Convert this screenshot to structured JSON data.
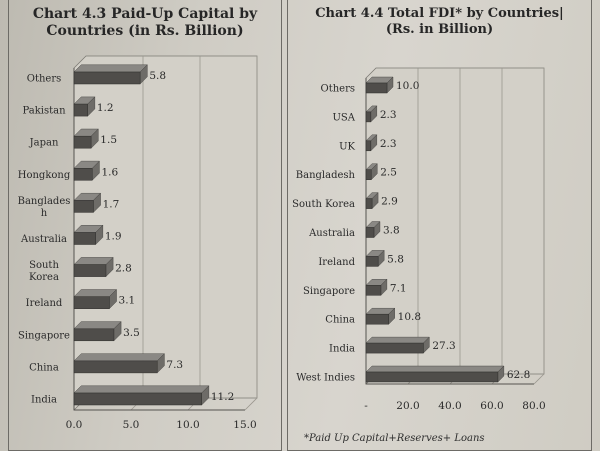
{
  "charts": [
    {
      "id": "chart-4-3",
      "title_line1": "Chart 4.3  Paid-Up Capital by",
      "title_line2": "Countries (in Rs. Billion)"
    },
    {
      "id": "chart-4-4",
      "title_line1": "Chart 4.4  Total FDI* by Countries|",
      "title_line2": "(Rs. in Billion)"
    }
  ],
  "footnote": "*Paid Up Capital+Reserves+ Loans",
  "colors": {
    "bar": "#4f4d4a",
    "bar_top": "#8a8884",
    "plot_bg": "#d3d0c8",
    "grid": "#9a978f"
  },
  "chart_data": [
    {
      "type": "bar",
      "orientation": "horizontal",
      "title": "Chart 4.3 Paid-Up Capital by Countries (in Rs. Billion)",
      "categories": [
        "Others",
        "Pakistan",
        "Japan",
        "Hongkong",
        "Banglades h",
        "Australia",
        "South Korea",
        "Ireland",
        "Singapore",
        "China",
        "India"
      ],
      "category_lines": [
        [
          "Others"
        ],
        [
          "Pakistan"
        ],
        [
          "Japan"
        ],
        [
          "Hongkong"
        ],
        [
          "Banglades",
          "h"
        ],
        [
          "Australia"
        ],
        [
          "South",
          "Korea"
        ],
        [
          "Ireland"
        ],
        [
          "Singapore"
        ],
        [
          "China"
        ],
        [
          "India"
        ]
      ],
      "values": [
        5.8,
        1.2,
        1.5,
        1.6,
        1.7,
        1.9,
        2.8,
        3.1,
        3.5,
        7.3,
        11.2
      ],
      "value_labels": [
        "5.8",
        "1.2",
        "1.5",
        "1.6",
        "1.7",
        "1.9",
        "2.8",
        "3.1",
        "3.5",
        "7.3",
        "11.2"
      ],
      "xlim": [
        0,
        15
      ],
      "xticks": [
        "0.0",
        "5.0",
        "10.0",
        "15.0"
      ],
      "xtick_values": [
        0,
        5,
        10,
        15
      ],
      "grid": true
    },
    {
      "type": "bar",
      "orientation": "horizontal",
      "title": "Chart 4.4 Total FDI* by Countries (Rs. in Billion)",
      "categories": [
        "Others",
        "USA",
        "UK",
        "Bangladesh",
        "South Korea",
        "Australia",
        "Ireland",
        "Singapore",
        "China",
        "India",
        "West Indies"
      ],
      "category_lines": [
        [
          "Others"
        ],
        [
          "USA"
        ],
        [
          "UK"
        ],
        [
          "Bangladesh"
        ],
        [
          "South Korea"
        ],
        [
          "Australia"
        ],
        [
          "Ireland"
        ],
        [
          "Singapore"
        ],
        [
          "China"
        ],
        [
          "India"
        ],
        [
          "West Indies"
        ]
      ],
      "values": [
        10.0,
        2.3,
        2.3,
        2.5,
        2.9,
        3.8,
        5.8,
        7.1,
        10.8,
        27.3,
        62.8
      ],
      "value_labels": [
        "10.0",
        "2.3",
        "2.3",
        "2.5",
        "2.9",
        "3.8",
        "5.8",
        "7.1",
        "10.8",
        "27.3",
        "62.8"
      ],
      "xlim": [
        0,
        80
      ],
      "xticks": [
        "-",
        "20.0",
        "40.0",
        "60.0",
        "80.0"
      ],
      "xtick_values": [
        0,
        20,
        40,
        60,
        80
      ],
      "grid": true
    }
  ]
}
